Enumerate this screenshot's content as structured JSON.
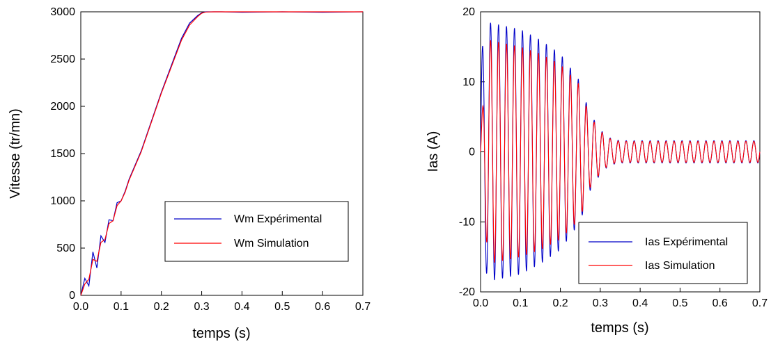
{
  "chart_data": [
    {
      "type": "line",
      "xlabel": "temps (s)",
      "ylabel": "Vitesse (tr/mn)",
      "xlim": [
        0,
        0.7
      ],
      "ylim": [
        0,
        3000
      ],
      "xticks": [
        "0.0",
        "0.1",
        "0.2",
        "0.3",
        "0.4",
        "0.5",
        "0.6",
        "0.7"
      ],
      "yticks": [
        "0",
        "500",
        "1000",
        "1500",
        "2000",
        "2500",
        "3000"
      ],
      "grid": false,
      "legend_position": "lower-right",
      "series": [
        {
          "name": "Wm Expérimental",
          "color": "#0000c8",
          "x": [
            0,
            0.01,
            0.02,
            0.03,
            0.04,
            0.05,
            0.06,
            0.07,
            0.08,
            0.09,
            0.1,
            0.11,
            0.12,
            0.15,
            0.2,
            0.25,
            0.27,
            0.29,
            0.3,
            0.31,
            0.33,
            0.35,
            0.4,
            0.5,
            0.6,
            0.7
          ],
          "y": [
            0,
            180,
            100,
            460,
            290,
            630,
            560,
            800,
            790,
            980,
            1000,
            1100,
            1230,
            1530,
            2150,
            2720,
            2880,
            2960,
            2990,
            3000,
            3000,
            3000,
            2995,
            3000,
            2995,
            3000
          ]
        },
        {
          "name": "Wm Simulation",
          "color": "#ff0000",
          "x": [
            0,
            0.01,
            0.02,
            0.03,
            0.04,
            0.05,
            0.06,
            0.07,
            0.08,
            0.09,
            0.1,
            0.11,
            0.12,
            0.15,
            0.2,
            0.25,
            0.27,
            0.29,
            0.3,
            0.31,
            0.33,
            0.35,
            0.4,
            0.5,
            0.6,
            0.7
          ],
          "y": [
            0,
            120,
            170,
            380,
            360,
            560,
            590,
            760,
            790,
            950,
            1000,
            1090,
            1220,
            1520,
            2140,
            2700,
            2860,
            2950,
            2985,
            2998,
            3000,
            3000,
            3000,
            3000,
            3000,
            3000
          ]
        }
      ]
    },
    {
      "type": "line",
      "xlabel": "temps (s)",
      "ylabel": "Ias (A)",
      "xlim": [
        0,
        0.7
      ],
      "ylim": [
        -20,
        20
      ],
      "xticks": [
        "0.0",
        "0.1",
        "0.2",
        "0.3",
        "0.4",
        "0.5",
        "0.6",
        "0.7"
      ],
      "yticks": [
        "-20",
        "-10",
        "0",
        "10",
        "20"
      ],
      "grid": false,
      "legend_position": "lower-right",
      "frequency_hz": 50,
      "series": [
        {
          "name": "Ias Expérimental",
          "color": "#0000c8",
          "envelope_t": [
            0,
            0.02,
            0.1,
            0.15,
            0.2,
            0.25,
            0.27,
            0.29,
            0.31,
            0.33,
            0.35,
            0.7
          ],
          "envelope_amp": [
            14,
            18.5,
            17.5,
            16,
            14,
            10,
            6,
            4,
            2.5,
            1.8,
            1.6,
            1.6
          ]
        },
        {
          "name": "Ias Simulation",
          "color": "#ff0000",
          "envelope_t": [
            0,
            0.02,
            0.1,
            0.15,
            0.2,
            0.25,
            0.27,
            0.29,
            0.31,
            0.33,
            0.35,
            0.7
          ],
          "envelope_amp": [
            3,
            16,
            15,
            14,
            12.5,
            9.5,
            5.5,
            3.8,
            2.4,
            1.7,
            1.5,
            1.5
          ]
        }
      ]
    }
  ]
}
